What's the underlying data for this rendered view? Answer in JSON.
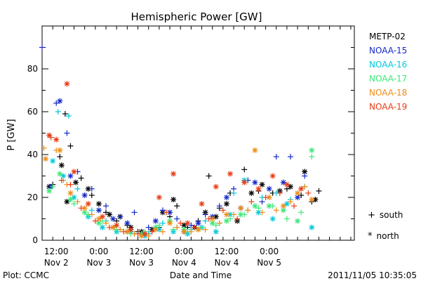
{
  "chart_data": {
    "type": "scatter",
    "title": "Hemispheric Power [GW]",
    "ylabel": "P [GW]",
    "xlabel": "Date and Time",
    "ylim": [
      0,
      100
    ],
    "xlim": [
      "2011-11-02T08:00",
      "2011-11-06T00:00"
    ],
    "y_ticks": [
      0,
      20,
      40,
      60,
      80
    ],
    "x_tick_labels": [
      {
        "time": "2011-11-02T12:00",
        "line1": "12:00",
        "line2": "Nov 2"
      },
      {
        "time": "2011-11-03T00:00",
        "line1": "0:00",
        "line2": "Nov 3"
      },
      {
        "time": "2011-11-03T12:00",
        "line1": "12:00",
        "line2": "Nov 3"
      },
      {
        "time": "2011-11-04T00:00",
        "line1": "0:00",
        "line2": "Nov 4"
      },
      {
        "time": "2011-11-04T12:00",
        "line1": "12:00",
        "line2": "Nov 4"
      },
      {
        "time": "2011-11-05T00:00",
        "line1": "0:00",
        "line2": "Nov 5"
      }
    ],
    "grid": false,
    "legend_position": "right",
    "hemisphere_markers": [
      {
        "symbol": "+",
        "label": "south"
      },
      {
        "symbol": "*",
        "label": "north"
      }
    ],
    "series": [
      {
        "name": "METP-02",
        "color": "#000000",
        "south": [
          [
            "2011-11-02T11:00",
            26
          ],
          [
            "2011-11-02T13:00",
            39
          ],
          [
            "2011-11-02T14:30",
            59
          ],
          [
            "2011-11-02T16:00",
            44
          ],
          [
            "2011-11-02T19:00",
            29
          ],
          [
            "2011-11-02T22:00",
            21
          ],
          [
            "2011-11-03T02:00",
            13
          ],
          [
            "2011-11-03T05:00",
            9
          ],
          [
            "2011-11-03T08:00",
            7
          ],
          [
            "2011-11-03T11:00",
            4
          ],
          [
            "2011-11-03T14:00",
            3
          ],
          [
            "2011-11-03T17:00",
            6
          ],
          [
            "2011-11-03T20:00",
            11
          ],
          [
            "2011-11-03T22:00",
            16
          ],
          [
            "2011-11-04T01:00",
            6
          ],
          [
            "2011-11-04T04:00",
            9
          ],
          [
            "2011-11-04T07:00",
            30
          ],
          [
            "2011-11-04T10:00",
            15
          ],
          [
            "2011-11-04T13:00",
            22
          ],
          [
            "2011-11-04T17:00",
            33
          ],
          [
            "2011-11-04T21:00",
            23
          ],
          [
            "2011-11-05T01:00",
            22
          ],
          [
            "2011-11-05T05:00",
            24
          ],
          [
            "2011-11-05T09:00",
            21
          ],
          [
            "2011-11-05T12:00",
            18
          ],
          [
            "2011-11-05T14:00",
            23
          ]
        ],
        "north": [
          [
            "2011-11-02T10:00",
            25
          ],
          [
            "2011-11-02T13:30",
            35
          ],
          [
            "2011-11-02T15:00",
            18
          ],
          [
            "2011-11-02T17:30",
            27
          ],
          [
            "2011-11-02T21:00",
            24
          ],
          [
            "2011-11-03T00:00",
            17
          ],
          [
            "2011-11-03T03:00",
            12
          ],
          [
            "2011-11-03T06:00",
            11
          ],
          [
            "2011-11-03T09:00",
            6
          ],
          [
            "2011-11-03T12:00",
            4
          ],
          [
            "2011-11-03T15:00",
            5
          ],
          [
            "2011-11-03T18:00",
            13
          ],
          [
            "2011-11-03T21:00",
            19
          ],
          [
            "2011-11-04T00:00",
            7
          ],
          [
            "2011-11-04T03:00",
            6
          ],
          [
            "2011-11-04T06:00",
            13
          ],
          [
            "2011-11-04T09:00",
            11
          ],
          [
            "2011-11-04T12:00",
            17
          ],
          [
            "2011-11-04T15:00",
            9
          ],
          [
            "2011-11-04T19:00",
            22
          ],
          [
            "2011-11-04T22:00",
            26
          ],
          [
            "2011-11-05T03:00",
            23
          ],
          [
            "2011-11-05T06:00",
            25
          ],
          [
            "2011-11-05T10:00",
            32
          ],
          [
            "2011-11-05T13:00",
            19
          ]
        ]
      },
      {
        "name": "NOAA-15",
        "color": "#1428c8",
        "south": [
          [
            "2011-11-02T08:00",
            90
          ],
          [
            "2011-11-02T12:00",
            64
          ],
          [
            "2011-11-02T15:00",
            50
          ],
          [
            "2011-11-02T18:00",
            32
          ],
          [
            "2011-11-02T22:00",
            24
          ],
          [
            "2011-11-03T02:00",
            16
          ],
          [
            "2011-11-03T06:00",
            11
          ],
          [
            "2011-11-03T10:00",
            13
          ],
          [
            "2011-11-03T14:00",
            6
          ],
          [
            "2011-11-03T18:00",
            14
          ],
          [
            "2011-11-03T22:00",
            10
          ],
          [
            "2011-11-04T02:00",
            7
          ],
          [
            "2011-11-04T06:00",
            12
          ],
          [
            "2011-11-04T10:00",
            16
          ],
          [
            "2011-11-04T14:00",
            24
          ],
          [
            "2011-11-04T18:00",
            28
          ],
          [
            "2011-11-04T22:00",
            18
          ],
          [
            "2011-11-05T02:00",
            39
          ],
          [
            "2011-11-05T06:00",
            39
          ],
          [
            "2011-11-05T10:00",
            30
          ]
        ],
        "north": [
          [
            "2011-11-02T10:30",
            25
          ],
          [
            "2011-11-02T13:00",
            65
          ],
          [
            "2011-11-02T16:00",
            30
          ],
          [
            "2011-11-02T20:00",
            21
          ],
          [
            "2011-11-03T00:00",
            14
          ],
          [
            "2011-11-03T04:00",
            10
          ],
          [
            "2011-11-03T08:00",
            8
          ],
          [
            "2011-11-03T12:00",
            3
          ],
          [
            "2011-11-03T16:00",
            9
          ],
          [
            "2011-11-03T20:00",
            13
          ],
          [
            "2011-11-04T00:00",
            4
          ],
          [
            "2011-11-04T04:00",
            8
          ],
          [
            "2011-11-04T08:00",
            11
          ],
          [
            "2011-11-04T12:00",
            20
          ],
          [
            "2011-11-04T16:00",
            15
          ],
          [
            "2011-11-04T20:00",
            27
          ],
          [
            "2011-11-05T00:00",
            24
          ],
          [
            "2011-11-05T04:00",
            27
          ],
          [
            "2011-11-05T08:00",
            20
          ]
        ]
      },
      {
        "name": "NOAA-16",
        "color": "#00c8dc",
        "south": [
          [
            "2011-11-02T12:30",
            60
          ],
          [
            "2011-11-02T15:30",
            58
          ],
          [
            "2011-11-02T18:00",
            24
          ],
          [
            "2011-11-02T22:00",
            14
          ],
          [
            "2011-11-03T02:00",
            9
          ],
          [
            "2011-11-03T06:00",
            5
          ],
          [
            "2011-11-03T10:00",
            3
          ],
          [
            "2011-11-03T14:00",
            3
          ],
          [
            "2011-11-03T18:00",
            8
          ],
          [
            "2011-11-03T22:00",
            6
          ],
          [
            "2011-11-04T02:00",
            5
          ],
          [
            "2011-11-04T06:00",
            9
          ],
          [
            "2011-11-04T10:00",
            8
          ],
          [
            "2011-11-04T14:00",
            22
          ],
          [
            "2011-11-04T18:00",
            14
          ],
          [
            "2011-11-04T22:00",
            20
          ],
          [
            "2011-11-05T02:00",
            22
          ],
          [
            "2011-11-05T06:00",
            19
          ],
          [
            "2011-11-05T10:00",
            25
          ]
        ],
        "north": [
          [
            "2011-11-02T11:00",
            37
          ],
          [
            "2011-11-02T14:00",
            30
          ],
          [
            "2011-11-02T17:00",
            20
          ],
          [
            "2011-11-02T21:00",
            11
          ],
          [
            "2011-11-03T01:00",
            6
          ],
          [
            "2011-11-03T05:00",
            4
          ],
          [
            "2011-11-03T09:00",
            4
          ],
          [
            "2011-11-03T13:00",
            2
          ],
          [
            "2011-11-03T17:00",
            5
          ],
          [
            "2011-11-03T21:00",
            4
          ],
          [
            "2011-11-04T01:00",
            3
          ],
          [
            "2011-11-04T05:00",
            6
          ],
          [
            "2011-11-04T09:00",
            4
          ],
          [
            "2011-11-04T13:00",
            12
          ],
          [
            "2011-11-04T17:00",
            28
          ],
          [
            "2011-11-04T21:00",
            13
          ],
          [
            "2011-11-05T01:00",
            10
          ],
          [
            "2011-11-05T05:00",
            17
          ],
          [
            "2011-11-05T12:00",
            6
          ]
        ]
      },
      {
        "name": "NOAA-17",
        "color": "#3ce878",
        "south": [
          [
            "2011-11-02T11:00",
            25
          ],
          [
            "2011-11-02T14:00",
            28
          ],
          [
            "2011-11-02T17:00",
            17
          ],
          [
            "2011-11-02T21:00",
            12
          ],
          [
            "2011-11-03T01:00",
            9
          ],
          [
            "2011-11-03T05:00",
            5
          ],
          [
            "2011-11-03T09:00",
            3
          ],
          [
            "2011-11-03T13:00",
            4
          ],
          [
            "2011-11-03T17:00",
            7
          ],
          [
            "2011-11-03T21:00",
            5
          ],
          [
            "2011-11-04T01:00",
            4
          ],
          [
            "2011-11-04T05:00",
            6
          ],
          [
            "2011-11-04T09:00",
            7
          ],
          [
            "2011-11-04T13:00",
            10
          ],
          [
            "2011-11-04T17:00",
            12
          ],
          [
            "2011-11-04T21:00",
            15
          ],
          [
            "2011-11-05T01:00",
            16
          ],
          [
            "2011-11-05T05:00",
            10
          ],
          [
            "2011-11-05T09:00",
            13
          ],
          [
            "2011-11-05T12:00",
            39
          ]
        ],
        "north": [
          [
            "2011-11-02T10:00",
            23
          ],
          [
            "2011-11-02T13:00",
            31
          ],
          [
            "2011-11-02T16:00",
            19
          ],
          [
            "2011-11-02T20:00",
            13
          ],
          [
            "2011-11-03T00:00",
            8
          ],
          [
            "2011-11-03T04:00",
            6
          ],
          [
            "2011-11-03T08:00",
            4
          ],
          [
            "2011-11-03T12:00",
            3
          ],
          [
            "2011-11-03T16:00",
            6
          ],
          [
            "2011-11-03T20:00",
            9
          ],
          [
            "2011-11-04T00:00",
            5
          ],
          [
            "2011-11-04T04:00",
            5
          ],
          [
            "2011-11-04T08:00",
            8
          ],
          [
            "2011-11-04T12:00",
            9
          ],
          [
            "2011-11-04T16:00",
            12
          ],
          [
            "2011-11-04T20:00",
            16
          ],
          [
            "2011-11-05T00:00",
            16
          ],
          [
            "2011-11-05T04:00",
            14
          ],
          [
            "2011-11-05T08:00",
            9
          ],
          [
            "2011-11-05T12:00",
            42
          ]
        ]
      },
      {
        "name": "NOAA-18",
        "color": "#f08c14",
        "south": [
          [
            "2011-11-02T08:30",
            43
          ],
          [
            "2011-11-02T12:00",
            42
          ],
          [
            "2011-11-02T15:00",
            26
          ],
          [
            "2011-11-02T18:00",
            18
          ],
          [
            "2011-11-02T22:00",
            12
          ],
          [
            "2011-11-03T02:00",
            8
          ],
          [
            "2011-11-03T06:00",
            5
          ],
          [
            "2011-11-03T10:00",
            3
          ],
          [
            "2011-11-03T14:00",
            2
          ],
          [
            "2011-11-03T18:00",
            4
          ],
          [
            "2011-11-03T22:00",
            6
          ],
          [
            "2011-11-04T02:00",
            4
          ],
          [
            "2011-11-04T06:00",
            5
          ],
          [
            "2011-11-04T10:00",
            8
          ],
          [
            "2011-11-04T14:00",
            12
          ],
          [
            "2011-11-04T18:00",
            14
          ],
          [
            "2011-11-04T22:00",
            13
          ],
          [
            "2011-11-05T02:00",
            14
          ],
          [
            "2011-11-05T06:00",
            18
          ],
          [
            "2011-11-05T10:00",
            25
          ]
        ],
        "north": [
          [
            "2011-11-02T09:00",
            38
          ],
          [
            "2011-11-02T13:00",
            42
          ],
          [
            "2011-11-02T16:00",
            22
          ],
          [
            "2011-11-02T20:00",
            15
          ],
          [
            "2011-11-03T00:00",
            10
          ],
          [
            "2011-11-03T04:00",
            6
          ],
          [
            "2011-11-03T08:00",
            4
          ],
          [
            "2011-11-03T12:00",
            2
          ],
          [
            "2011-11-03T16:00",
            5
          ],
          [
            "2011-11-03T20:00",
            8
          ],
          [
            "2011-11-04T00:00",
            4
          ],
          [
            "2011-11-04T04:00",
            5
          ],
          [
            "2011-11-04T08:00",
            10
          ],
          [
            "2011-11-04T12:00",
            12
          ],
          [
            "2011-11-04T16:00",
            15
          ],
          [
            "2011-11-04T20:00",
            42
          ],
          [
            "2011-11-05T00:00",
            20
          ],
          [
            "2011-11-05T04:00",
            16
          ],
          [
            "2011-11-05T08:00",
            22
          ],
          [
            "2011-11-05T12:00",
            19
          ]
        ]
      },
      {
        "name": "NOAA-19",
        "color": "#e83c14",
        "south": [
          [
            "2011-11-02T10:30",
            48
          ],
          [
            "2011-11-02T13:30",
            28
          ],
          [
            "2011-11-02T16:00",
            26
          ],
          [
            "2011-11-02T19:00",
            15
          ],
          [
            "2011-11-02T23:00",
            9
          ],
          [
            "2011-11-03T03:00",
            6
          ],
          [
            "2011-11-03T07:00",
            4
          ],
          [
            "2011-11-03T11:00",
            3
          ],
          [
            "2011-11-03T15:00",
            4
          ],
          [
            "2011-11-03T19:00",
            13
          ],
          [
            "2011-11-03T23:00",
            8
          ],
          [
            "2011-11-04T03:00",
            6
          ],
          [
            "2011-11-04T07:00",
            10
          ],
          [
            "2011-11-04T11:00",
            14
          ],
          [
            "2011-11-04T15:00",
            10
          ],
          [
            "2011-11-04T19:00",
            18
          ],
          [
            "2011-11-04T23:00",
            20
          ],
          [
            "2011-11-05T03:00",
            22
          ],
          [
            "2011-11-05T07:00",
            16
          ],
          [
            "2011-11-05T11:00",
            22
          ]
        ],
        "north": [
          [
            "2011-11-02T10:00",
            49
          ],
          [
            "2011-11-02T12:00",
            47
          ],
          [
            "2011-11-02T15:00",
            73
          ],
          [
            "2011-11-02T17:00",
            32
          ],
          [
            "2011-11-02T21:00",
            17
          ],
          [
            "2011-11-03T01:00",
            11
          ],
          [
            "2011-11-03T05:00",
            7
          ],
          [
            "2011-11-03T09:00",
            5
          ],
          [
            "2011-11-03T13:00",
            3
          ],
          [
            "2011-11-03T17:00",
            20
          ],
          [
            "2011-11-03T21:00",
            31
          ],
          [
            "2011-11-04T01:00",
            8
          ],
          [
            "2011-11-04T05:00",
            17
          ],
          [
            "2011-11-04T09:00",
            25
          ],
          [
            "2011-11-04T13:00",
            31
          ],
          [
            "2011-11-04T17:00",
            27
          ],
          [
            "2011-11-04T21:00",
            24
          ],
          [
            "2011-11-05T01:00",
            30
          ],
          [
            "2011-11-05T05:00",
            26
          ],
          [
            "2011-11-05T09:00",
            24
          ]
        ]
      }
    ]
  },
  "footer": {
    "left": "Plot: CCMC",
    "center": "Date and Time",
    "right": "2011/11/05 10:35:05"
  }
}
